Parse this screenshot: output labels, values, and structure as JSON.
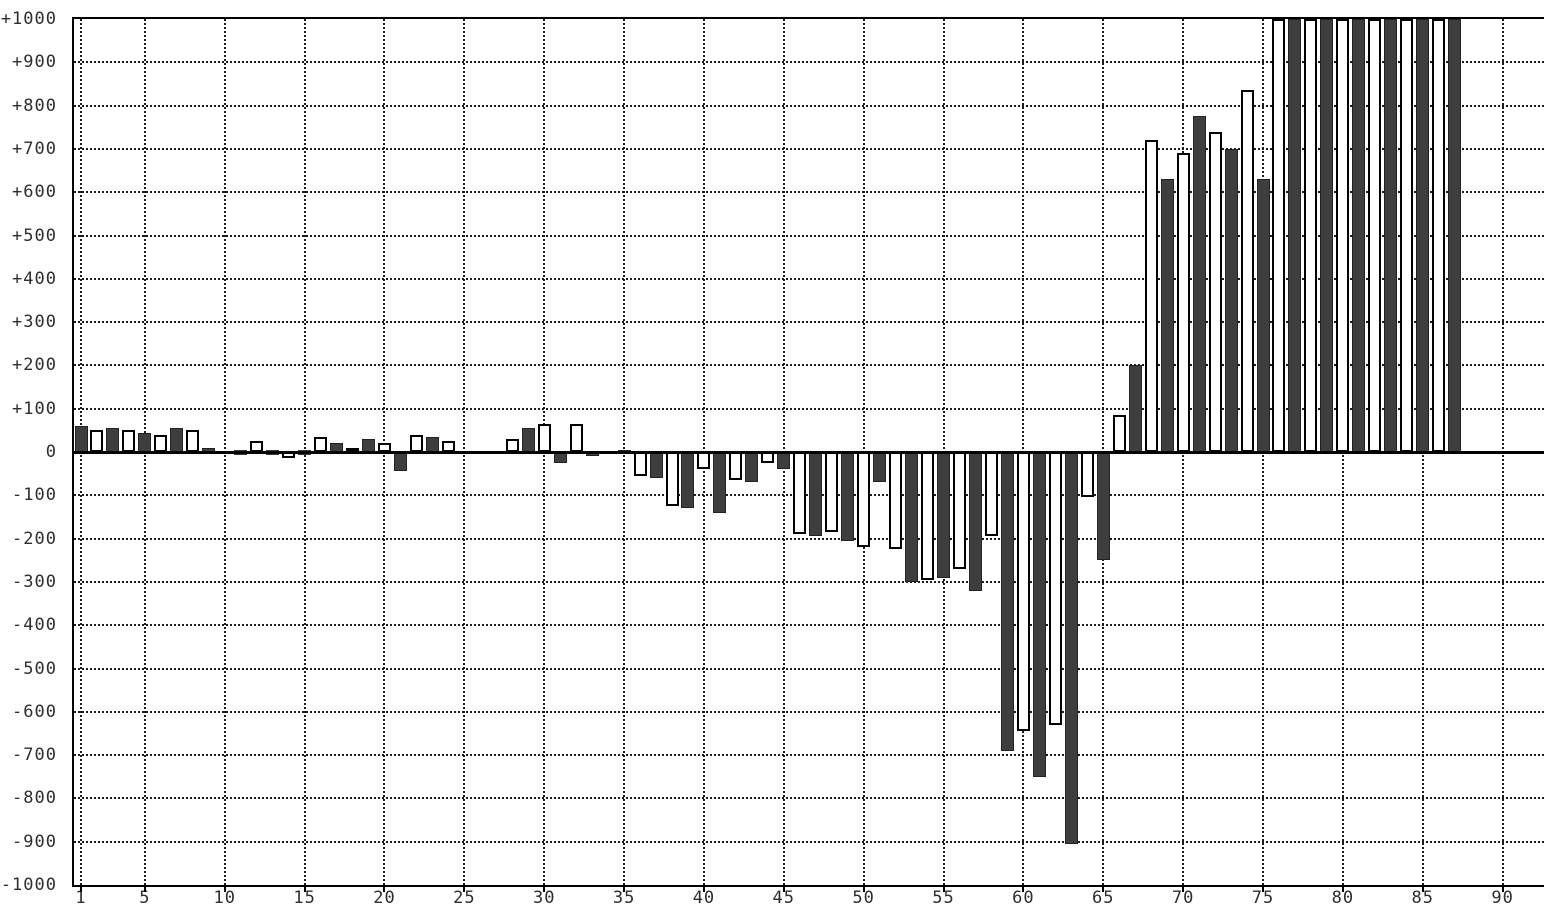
{
  "chart_data": {
    "type": "bar",
    "title": "",
    "xlabel": "",
    "ylabel": "",
    "grid": true,
    "background": "#ffffff",
    "bar_style_note": "single series of 87 bars, alternating fill: odd x = dark filled, even x = white with black outline",
    "dark_fill": "#3e3e3e",
    "outline_color": "#000000",
    "xlim": [
      0.4,
      92.6
    ],
    "ylim": [
      -1000,
      1000
    ],
    "clip_max": 1000,
    "clipped_above_note": "bars at x=76..87 exceed +1000 and are clipped flat at the top border",
    "x_ticks": [
      1,
      5,
      10,
      15,
      20,
      25,
      30,
      35,
      40,
      45,
      50,
      55,
      60,
      65,
      70,
      75,
      80,
      85,
      90
    ],
    "y_ticks": {
      "values": [
        1000,
        900,
        800,
        700,
        600,
        500,
        400,
        300,
        200,
        100,
        0,
        -100,
        -200,
        -300,
        -400,
        -500,
        -600,
        -700,
        -800,
        -900,
        -1000
      ],
      "labels": [
        "+1000",
        "+900",
        "+800",
        "+700",
        "+600",
        "+500",
        "+400",
        "+300",
        "+200",
        "+100",
        "0",
        "-100",
        "-200",
        "-300",
        "-400",
        "-500",
        "-600",
        "-700",
        "-800",
        "-900",
        "-1000"
      ]
    },
    "x": [
      1,
      2,
      3,
      4,
      5,
      6,
      7,
      8,
      9,
      10,
      11,
      12,
      13,
      14,
      15,
      16,
      17,
      18,
      19,
      20,
      21,
      22,
      23,
      24,
      25,
      26,
      27,
      28,
      29,
      30,
      31,
      32,
      33,
      34,
      35,
      36,
      37,
      38,
      39,
      40,
      41,
      42,
      43,
      44,
      45,
      46,
      47,
      48,
      49,
      50,
      51,
      52,
      53,
      54,
      55,
      56,
      57,
      58,
      59,
      60,
      61,
      62,
      63,
      64,
      65,
      66,
      67,
      68,
      69,
      70,
      71,
      72,
      73,
      74,
      75,
      76,
      77,
      78,
      79,
      80,
      81,
      82,
      83,
      84,
      85,
      86,
      87
    ],
    "values": [
      60,
      50,
      55,
      50,
      45,
      40,
      55,
      50,
      10,
      null,
      0,
      25,
      0,
      -15,
      0,
      35,
      20,
      10,
      30,
      20,
      -45,
      40,
      35,
      25,
      null,
      null,
      null,
      30,
      55,
      65,
      -25,
      65,
      -10,
      null,
      5,
      -55,
      -60,
      -125,
      -130,
      -40,
      -140,
      -65,
      -70,
      -25,
      -40,
      -190,
      -195,
      -185,
      -205,
      -220,
      -70,
      -225,
      -300,
      -295,
      -290,
      -270,
      -320,
      -195,
      -690,
      -645,
      -750,
      -630,
      -905,
      -105,
      -250,
      85,
      200,
      720,
      630,
      690,
      775,
      740,
      700,
      835,
      630,
      1000,
      1000,
      1000,
      1000,
      1000,
      1000,
      1000,
      1000,
      1000,
      1000,
      1000,
      1000
    ]
  }
}
